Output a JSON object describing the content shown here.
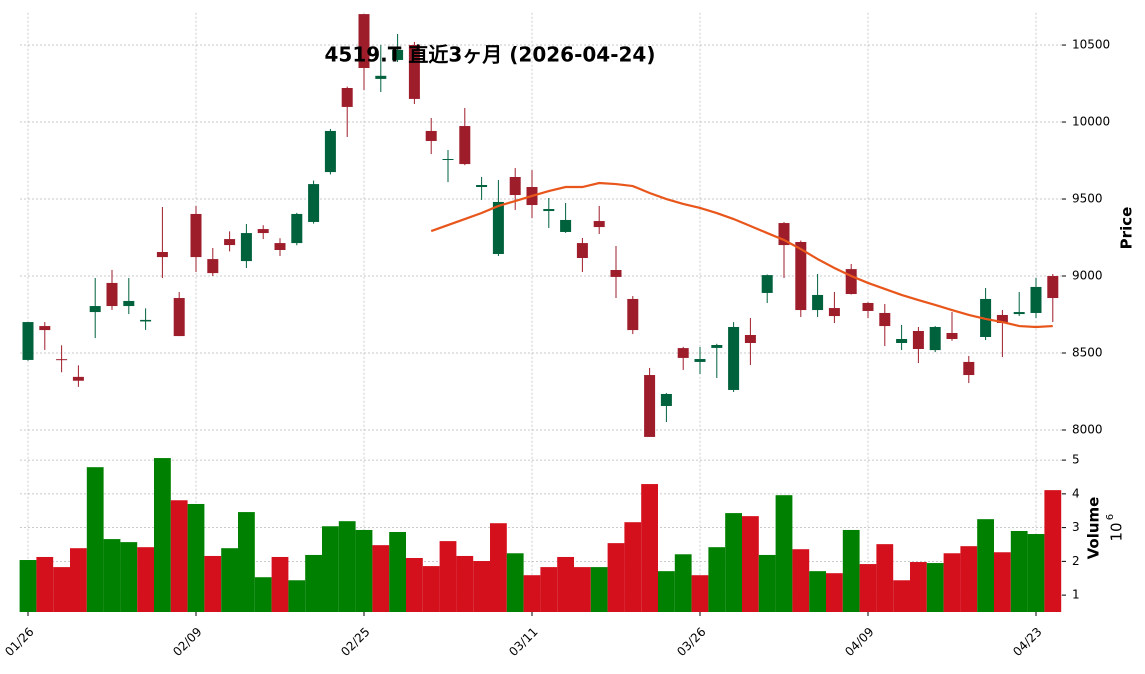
{
  "chart_data": {
    "type": "candlestick",
    "title": "4519.T 直近3ヶ月 (2026-04-24)",
    "ylabel": "Price",
    "y2label": "Volume",
    "y2_exponent": {
      "base": "10",
      "power": "6"
    },
    "categories": [
      "01/26",
      null,
      null,
      null,
      null,
      null,
      null,
      null,
      null,
      null,
      "02/09",
      null,
      null,
      null,
      null,
      null,
      null,
      null,
      null,
      null,
      "02/25",
      null,
      null,
      null,
      null,
      null,
      null,
      null,
      null,
      null,
      "03/11",
      null,
      null,
      null,
      null,
      null,
      null,
      null,
      null,
      null,
      "03/26",
      null,
      null,
      null,
      null,
      null,
      null,
      null,
      null,
      null,
      "04/09",
      null,
      null,
      null,
      null,
      null,
      null,
      null,
      null,
      null,
      "04/23",
      null
    ],
    "open": [
      8455,
      8675,
      8460,
      8345,
      8766,
      8955,
      8805,
      8705,
      9156,
      8857,
      9403,
      9110,
      9240,
      9097,
      9305,
      9214,
      9214,
      9351,
      9675,
      10221,
      10701,
      10280,
      10403,
      10500,
      9942,
      9755,
      9974,
      9578,
      9143,
      9643,
      9578,
      9422,
      9286,
      9214,
      9357,
      9039,
      8851,
      8357,
      8156,
      8532,
      8442,
      8533,
      8260,
      8617,
      8890,
      9344,
      9221,
      8779,
      8792,
      9045,
      8825,
      8760,
      8565,
      8643,
      8519,
      8630,
      8442,
      8604,
      8747,
      8753,
      8760,
      9000
    ],
    "high": [
      8700,
      8701,
      8550,
      8420,
      8987,
      9040,
      8987,
      8790,
      9448,
      8896,
      9455,
      9182,
      9290,
      9338,
      9330,
      9245,
      9410,
      9620,
      9955,
      10230,
      10700,
      10500,
      10572,
      10520,
      10026,
      9818,
      10091,
      9643,
      9623,
      9701,
      9688,
      9507,
      9474,
      9247,
      9455,
      9195,
      8870,
      8403,
      8240,
      8540,
      8539,
      8560,
      8701,
      8727,
      9010,
      9350,
      9230,
      9013,
      8896,
      9078,
      8830,
      8818,
      8682,
      8669,
      8675,
      8766,
      8481,
      8922,
      8779,
      8896,
      8987,
      9013
    ],
    "low": [
      8450,
      8520,
      8375,
      8280,
      8597,
      8780,
      8753,
      8650,
      8987,
      8610,
      9026,
      9000,
      9160,
      9052,
      9240,
      9130,
      9200,
      9340,
      9660,
      9903,
      10208,
      10195,
      10390,
      10117,
      9792,
      9610,
      9720,
      9494,
      9130,
      9429,
      9377,
      9312,
      9280,
      9026,
      9273,
      8857,
      8623,
      7955,
      8052,
      8390,
      8364,
      8338,
      8247,
      8422,
      8825,
      8987,
      8734,
      8734,
      8695,
      8880,
      8727,
      8545,
      8519,
      8435,
      8506,
      8580,
      8305,
      8584,
      8474,
      8740,
      8727,
      8701
    ],
    "close": [
      8701,
      8649,
      8455,
      8320,
      8805,
      8805,
      8838,
      8715,
      9123,
      8610,
      9123,
      9019,
      9201,
      9279,
      9279,
      9169,
      9403,
      9597,
      9942,
      10098,
      10351,
      10300,
      10468,
      10150,
      9877,
      9760,
      9727,
      9591,
      9481,
      9526,
      9461,
      9435,
      9364,
      9117,
      9318,
      8994,
      8649,
      7955,
      8234,
      8468,
      8461,
      8552,
      8669,
      8565,
      9006,
      9201,
      8779,
      8877,
      8740,
      8883,
      8773,
      8675,
      8591,
      8526,
      8669,
      8591,
      8357,
      8851,
      8695,
      8766,
      8929,
      8857
    ],
    "ma": {
      "color": "#e8561b",
      "values": [
        null,
        null,
        null,
        null,
        null,
        null,
        null,
        null,
        null,
        null,
        null,
        null,
        null,
        null,
        null,
        null,
        null,
        null,
        null,
        null,
        null,
        null,
        null,
        null,
        9292,
        9331,
        9370,
        9409,
        9455,
        9487,
        9520,
        9552,
        9578,
        9578,
        9604,
        9597,
        9584,
        9539,
        9500,
        9468,
        9442,
        9409,
        9370,
        9325,
        9279,
        9234,
        9175,
        9110,
        9052,
        9000,
        8955,
        8916,
        8877,
        8844,
        8812,
        8779,
        8747,
        8721,
        8701,
        8675,
        8669,
        8675
      ]
    },
    "volume": {
      "values": [
        2.04,
        2.13,
        1.83,
        2.39,
        4.79,
        2.66,
        2.57,
        2.42,
        5.06,
        3.81,
        3.7,
        2.16,
        2.39,
        3.46,
        1.53,
        2.13,
        1.44,
        2.19,
        3.04,
        3.19,
        2.93,
        2.48,
        2.87,
        2.1,
        1.86,
        2.6,
        2.16,
        2.01,
        3.13,
        2.24,
        1.59,
        1.83,
        2.13,
        1.83,
        1.83,
        2.54,
        3.16,
        4.29,
        1.71,
        2.21,
        1.59,
        2.42,
        3.43,
        3.34,
        2.19,
        3.96,
        2.36,
        1.71,
        1.65,
        2.93,
        1.92,
        2.51,
        1.44,
        1.98,
        1.95,
        2.24,
        2.45,
        3.25,
        2.27,
        2.9,
        2.81,
        4.11
      ],
      "colors": [
        "#008000",
        "#d4101c",
        "#d4101c",
        "#d4101c",
        "#008000",
        "#008000",
        "#008000",
        "#d4101c",
        "#008000",
        "#d4101c",
        "#008000",
        "#d4101c",
        "#008000",
        "#008000",
        "#008000",
        "#d4101c",
        "#008000",
        "#008000",
        "#008000",
        "#008000",
        "#008000",
        "#d4101c",
        "#008000",
        "#d4101c",
        "#d4101c",
        "#d4101c",
        "#d4101c",
        "#d4101c",
        "#d4101c",
        "#008000",
        "#d4101c",
        "#d4101c",
        "#d4101c",
        "#d4101c",
        "#008000",
        "#d4101c",
        "#d4101c",
        "#d4101c",
        "#008000",
        "#008000",
        "#d4101c",
        "#008000",
        "#008000",
        "#d4101c",
        "#008000",
        "#008000",
        "#d4101c",
        "#008000",
        "#d4101c",
        "#008000",
        "#d4101c",
        "#d4101c",
        "#d4101c",
        "#d4101c",
        "#008000",
        "#d4101c",
        "#d4101c",
        "#008000",
        "#d4101c",
        "#008000",
        "#008000",
        "#d4101c"
      ]
    },
    "up_color": "#00613d",
    "down_color": "#9e1d2b",
    "ylim": [
      7900,
      10710
    ],
    "yticks": [
      8000,
      8500,
      9000,
      9500,
      10000,
      10500
    ],
    "y2lim": [
      0.5,
      5.45
    ],
    "y2ticks": [
      1,
      2,
      3,
      4,
      5
    ],
    "grid": true
  }
}
